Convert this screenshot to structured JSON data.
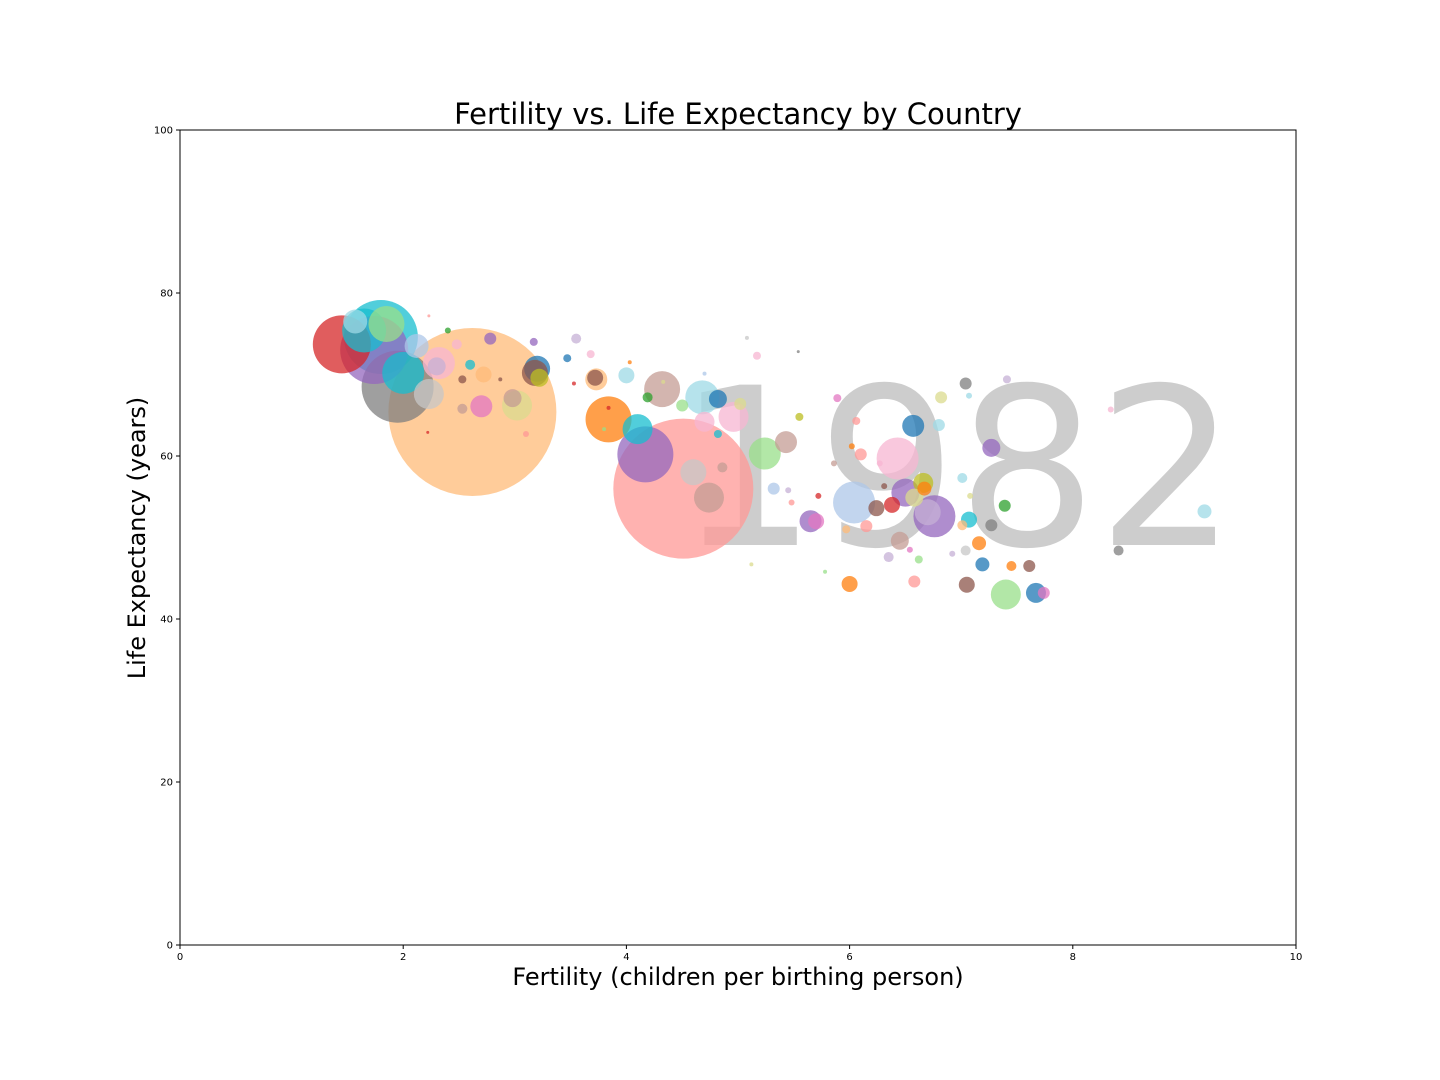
{
  "chart_data": {
    "type": "scatter",
    "title": "Fertility vs. Life Expectancy by Country",
    "xlabel": "Fertility (children per birthing person)",
    "ylabel": "Life Expectancy (years)",
    "xlim": [
      0,
      10
    ],
    "ylim": [
      0,
      100
    ],
    "xticks": [
      "0",
      "2",
      "4",
      "6",
      "8",
      "10"
    ],
    "yticks": [
      "0",
      "20",
      "40",
      "60",
      "80",
      "100"
    ],
    "year_label": "1982",
    "grid": false,
    "palette": [
      "#d62728",
      "#9467bd",
      "#17becf",
      "#bcbd22",
      "#2ca02c",
      "#ff7f0e",
      "#1f77b4",
      "#8c564b",
      "#e377c2",
      "#7f7f7f",
      "#aec7e8",
      "#ffbb78",
      "#98df8a",
      "#ff9896",
      "#c5b0d5",
      "#c49c94",
      "#f7b6d2",
      "#c7c7c7",
      "#dbdb8d",
      "#9edae5"
    ],
    "points": [
      {
        "x": 2.62,
        "y": 65.4,
        "size": 84,
        "color": "#ffbb78"
      },
      {
        "x": 4.51,
        "y": 56.0,
        "size": 70,
        "color": "#ff9896"
      },
      {
        "x": 1.74,
        "y": 73.0,
        "size": 34,
        "color": "#9467bd"
      },
      {
        "x": 1.8,
        "y": 74.6,
        "size": 37,
        "color": "#17becf"
      },
      {
        "x": 1.45,
        "y": 73.7,
        "size": 29,
        "color": "#d62728"
      },
      {
        "x": 1.95,
        "y": 68.5,
        "size": 36,
        "color": "#7f7f7f"
      },
      {
        "x": 2.0,
        "y": 70.2,
        "size": 21,
        "color": "#17becf"
      },
      {
        "x": 1.85,
        "y": 76.2,
        "size": 18,
        "color": "#98df8a"
      },
      {
        "x": 1.65,
        "y": 75.4,
        "size": 22,
        "color": "#17becf"
      },
      {
        "x": 1.57,
        "y": 76.5,
        "size": 12,
        "color": "#9edae5"
      },
      {
        "x": 2.12,
        "y": 73.5,
        "size": 12,
        "color": "#aec7e8"
      },
      {
        "x": 2.23,
        "y": 67.6,
        "size": 15,
        "color": "#c7c7c7"
      },
      {
        "x": 2.32,
        "y": 71.4,
        "size": 16,
        "color": "#f7b6d2"
      },
      {
        "x": 2.3,
        "y": 71.0,
        "size": 9,
        "color": "#c5b0d5"
      },
      {
        "x": 2.7,
        "y": 66.1,
        "size": 11,
        "color": "#e377c2"
      },
      {
        "x": 2.72,
        "y": 70.0,
        "size": 8,
        "color": "#ffbb78"
      },
      {
        "x": 2.98,
        "y": 67.1,
        "size": 9,
        "color": "#c49c94"
      },
      {
        "x": 3.02,
        "y": 66.2,
        "size": 15,
        "color": "#dbdb8d"
      },
      {
        "x": 3.2,
        "y": 70.7,
        "size": 13,
        "color": "#1f77b4"
      },
      {
        "x": 3.18,
        "y": 70.2,
        "size": 13,
        "color": "#8c564b"
      },
      {
        "x": 3.22,
        "y": 69.6,
        "size": 9,
        "color": "#bcbd22"
      },
      {
        "x": 2.78,
        "y": 74.4,
        "size": 6,
        "color": "#9467bd"
      },
      {
        "x": 2.6,
        "y": 71.2,
        "size": 5,
        "color": "#17becf"
      },
      {
        "x": 2.53,
        "y": 69.4,
        "size": 4,
        "color": "#8c564b"
      },
      {
        "x": 2.53,
        "y": 65.8,
        "size": 5,
        "color": "#c49c94"
      },
      {
        "x": 2.48,
        "y": 73.7,
        "size": 5,
        "color": "#f7b6d2"
      },
      {
        "x": 3.17,
        "y": 74.0,
        "size": 4,
        "color": "#9467bd"
      },
      {
        "x": 3.55,
        "y": 74.4,
        "size": 5,
        "color": "#c5b0d5"
      },
      {
        "x": 3.47,
        "y": 72.0,
        "size": 4,
        "color": "#1f77b4"
      },
      {
        "x": 3.68,
        "y": 72.5,
        "size": 4,
        "color": "#f7b6d2"
      },
      {
        "x": 3.73,
        "y": 69.4,
        "size": 11,
        "color": "#ffbb78"
      },
      {
        "x": 3.72,
        "y": 69.6,
        "size": 8,
        "color": "#8c564b"
      },
      {
        "x": 3.84,
        "y": 64.5,
        "size": 23,
        "color": "#ff7f0e"
      },
      {
        "x": 4.0,
        "y": 69.9,
        "size": 8,
        "color": "#9edae5"
      },
      {
        "x": 4.1,
        "y": 63.3,
        "size": 15,
        "color": "#17becf"
      },
      {
        "x": 4.17,
        "y": 60.2,
        "size": 28,
        "color": "#9467bd"
      },
      {
        "x": 4.32,
        "y": 68.2,
        "size": 18,
        "color": "#c49c94"
      },
      {
        "x": 4.19,
        "y": 67.2,
        "size": 5,
        "color": "#2ca02c"
      },
      {
        "x": 4.5,
        "y": 66.2,
        "size": 6,
        "color": "#98df8a"
      },
      {
        "x": 4.68,
        "y": 67.2,
        "size": 17,
        "color": "#9edae5"
      },
      {
        "x": 4.7,
        "y": 64.2,
        "size": 10,
        "color": "#f7b6d2"
      },
      {
        "x": 4.6,
        "y": 58.0,
        "size": 13,
        "color": "#c7c7c7"
      },
      {
        "x": 4.74,
        "y": 54.9,
        "size": 15,
        "color": "#c49c94"
      },
      {
        "x": 4.82,
        "y": 67.0,
        "size": 9,
        "color": "#1f77b4"
      },
      {
        "x": 4.82,
        "y": 62.7,
        "size": 4,
        "color": "#17becf"
      },
      {
        "x": 4.86,
        "y": 58.6,
        "size": 5,
        "color": "#c49c94"
      },
      {
        "x": 4.96,
        "y": 64.8,
        "size": 15,
        "color": "#f7b6d2"
      },
      {
        "x": 5.02,
        "y": 66.4,
        "size": 6,
        "color": "#dbdb8d"
      },
      {
        "x": 5.17,
        "y": 72.3,
        "size": 4,
        "color": "#f7b6d2"
      },
      {
        "x": 5.24,
        "y": 60.3,
        "size": 16,
        "color": "#98df8a"
      },
      {
        "x": 5.43,
        "y": 61.7,
        "size": 11,
        "color": "#c49c94"
      },
      {
        "x": 5.32,
        "y": 56.0,
        "size": 6,
        "color": "#aec7e8"
      },
      {
        "x": 5.55,
        "y": 64.8,
        "size": 4,
        "color": "#bcbd22"
      },
      {
        "x": 5.65,
        "y": 52.0,
        "size": 11,
        "color": "#9467bd"
      },
      {
        "x": 5.7,
        "y": 52.0,
        "size": 8,
        "color": "#e377c2"
      },
      {
        "x": 5.89,
        "y": 67.1,
        "size": 4,
        "color": "#e377c2"
      },
      {
        "x": 6.04,
        "y": 54.3,
        "size": 21,
        "color": "#aec7e8"
      },
      {
        "x": 6.0,
        "y": 44.3,
        "size": 8,
        "color": "#ff7f0e"
      },
      {
        "x": 6.06,
        "y": 64.3,
        "size": 4,
        "color": "#ff9896"
      },
      {
        "x": 6.1,
        "y": 60.2,
        "size": 6,
        "color": "#ff9896"
      },
      {
        "x": 6.15,
        "y": 51.4,
        "size": 6,
        "color": "#ff9896"
      },
      {
        "x": 6.24,
        "y": 53.6,
        "size": 8,
        "color": "#8c564b"
      },
      {
        "x": 6.38,
        "y": 54.0,
        "size": 8,
        "color": "#d62728"
      },
      {
        "x": 6.43,
        "y": 59.7,
        "size": 21,
        "color": "#f7b6d2"
      },
      {
        "x": 6.5,
        "y": 55.5,
        "size": 14,
        "color": "#9467bd"
      },
      {
        "x": 6.45,
        "y": 49.6,
        "size": 9,
        "color": "#c49c94"
      },
      {
        "x": 6.57,
        "y": 63.7,
        "size": 11,
        "color": "#1f77b4"
      },
      {
        "x": 6.58,
        "y": 54.9,
        "size": 9,
        "color": "#dbdb8d"
      },
      {
        "x": 6.66,
        "y": 56.7,
        "size": 10,
        "color": "#bcbd22"
      },
      {
        "x": 6.67,
        "y": 56.0,
        "size": 7,
        "color": "#ff7f0e"
      },
      {
        "x": 6.7,
        "y": 53.1,
        "size": 13,
        "color": "#c5b0d5"
      },
      {
        "x": 6.76,
        "y": 52.6,
        "size": 21,
        "color": "#9467bd"
      },
      {
        "x": 6.58,
        "y": 44.6,
        "size": 6,
        "color": "#ff9896"
      },
      {
        "x": 6.62,
        "y": 47.3,
        "size": 4,
        "color": "#98df8a"
      },
      {
        "x": 6.35,
        "y": 47.6,
        "size": 5,
        "color": "#c5b0d5"
      },
      {
        "x": 6.82,
        "y": 67.2,
        "size": 6,
        "color": "#dbdb8d"
      },
      {
        "x": 6.8,
        "y": 63.8,
        "size": 6,
        "color": "#9edae5"
      },
      {
        "x": 7.04,
        "y": 68.9,
        "size": 6,
        "color": "#7f7f7f"
      },
      {
        "x": 7.01,
        "y": 57.3,
        "size": 5,
        "color": "#9edae5"
      },
      {
        "x": 7.07,
        "y": 52.2,
        "size": 8,
        "color": "#17becf"
      },
      {
        "x": 7.01,
        "y": 51.5,
        "size": 5,
        "color": "#ffbb78"
      },
      {
        "x": 7.04,
        "y": 48.4,
        "size": 5,
        "color": "#c7c7c7"
      },
      {
        "x": 7.16,
        "y": 49.3,
        "size": 7,
        "color": "#ff7f0e"
      },
      {
        "x": 7.19,
        "y": 46.7,
        "size": 7,
        "color": "#1f77b4"
      },
      {
        "x": 7.05,
        "y": 44.2,
        "size": 8,
        "color": "#8c564b"
      },
      {
        "x": 7.27,
        "y": 61.0,
        "size": 9,
        "color": "#9467bd"
      },
      {
        "x": 7.27,
        "y": 51.5,
        "size": 6,
        "color": "#7f7f7f"
      },
      {
        "x": 7.39,
        "y": 53.9,
        "size": 6,
        "color": "#2ca02c"
      },
      {
        "x": 7.41,
        "y": 69.4,
        "size": 4,
        "color": "#c5b0d5"
      },
      {
        "x": 7.4,
        "y": 43.0,
        "size": 15,
        "color": "#98df8a"
      },
      {
        "x": 7.45,
        "y": 46.5,
        "size": 5,
        "color": "#ff7f0e"
      },
      {
        "x": 7.61,
        "y": 46.5,
        "size": 6,
        "color": "#8c564b"
      },
      {
        "x": 7.67,
        "y": 43.2,
        "size": 10,
        "color": "#1f77b4"
      },
      {
        "x": 7.74,
        "y": 43.2,
        "size": 6,
        "color": "#e377c2"
      },
      {
        "x": 8.41,
        "y": 48.4,
        "size": 5,
        "color": "#7f7f7f"
      },
      {
        "x": 8.34,
        "y": 65.7,
        "size": 3,
        "color": "#f7b6d2"
      },
      {
        "x": 9.18,
        "y": 53.2,
        "size": 7,
        "color": "#9edae5"
      },
      {
        "x": 2.4,
        "y": 75.4,
        "size": 3,
        "color": "#2ca02c"
      },
      {
        "x": 2.87,
        "y": 69.4,
        "size": 2,
        "color": "#8c564b"
      },
      {
        "x": 3.1,
        "y": 62.7,
        "size": 3,
        "color": "#ff9896"
      },
      {
        "x": 3.53,
        "y": 68.9,
        "size": 2,
        "color": "#d62728"
      },
      {
        "x": 3.84,
        "y": 65.9,
        "size": 2,
        "color": "#d62728"
      },
      {
        "x": 3.8,
        "y": 63.3,
        "size": 2,
        "color": "#98df8a"
      },
      {
        "x": 4.03,
        "y": 71.5,
        "size": 2,
        "color": "#ff7f0e"
      },
      {
        "x": 4.33,
        "y": 69.1,
        "size": 2,
        "color": "#dbdb8d"
      },
      {
        "x": 5.12,
        "y": 46.7,
        "size": 2,
        "color": "#dbdb8d"
      },
      {
        "x": 5.72,
        "y": 55.1,
        "size": 3,
        "color": "#d62728"
      },
      {
        "x": 5.78,
        "y": 45.8,
        "size": 2,
        "color": "#98df8a"
      },
      {
        "x": 5.86,
        "y": 59.1,
        "size": 3,
        "color": "#c49c94"
      },
      {
        "x": 5.97,
        "y": 51.0,
        "size": 4,
        "color": "#ffbb78"
      },
      {
        "x": 6.02,
        "y": 61.2,
        "size": 3,
        "color": "#ff7f0e"
      },
      {
        "x": 6.27,
        "y": 59.1,
        "size": 3,
        "color": "#f7b6d2"
      },
      {
        "x": 6.31,
        "y": 56.3,
        "size": 3,
        "color": "#8c564b"
      },
      {
        "x": 6.54,
        "y": 48.5,
        "size": 3,
        "color": "#e377c2"
      },
      {
        "x": 6.92,
        "y": 48.0,
        "size": 3,
        "color": "#c5b0d5"
      },
      {
        "x": 7.08,
        "y": 55.1,
        "size": 3,
        "color": "#dbdb8d"
      },
      {
        "x": 7.07,
        "y": 67.4,
        "size": 3,
        "color": "#9edae5"
      },
      {
        "x": 5.48,
        "y": 54.3,
        "size": 3,
        "color": "#ff9896"
      },
      {
        "x": 5.45,
        "y": 55.8,
        "size": 3,
        "color": "#c5b0d5"
      },
      {
        "x": 4.7,
        "y": 70.1,
        "size": 2,
        "color": "#aec7e8"
      },
      {
        "x": 5.08,
        "y": 74.5,
        "size": 2,
        "color": "#c7c7c7"
      },
      {
        "x": 5.54,
        "y": 72.8,
        "size": 1.5,
        "color": "#7f7f7f"
      },
      {
        "x": 2.23,
        "y": 77.2,
        "size": 1.5,
        "color": "#ff9896"
      },
      {
        "x": 2.22,
        "y": 62.9,
        "size": 1.5,
        "color": "#d62728"
      }
    ]
  }
}
